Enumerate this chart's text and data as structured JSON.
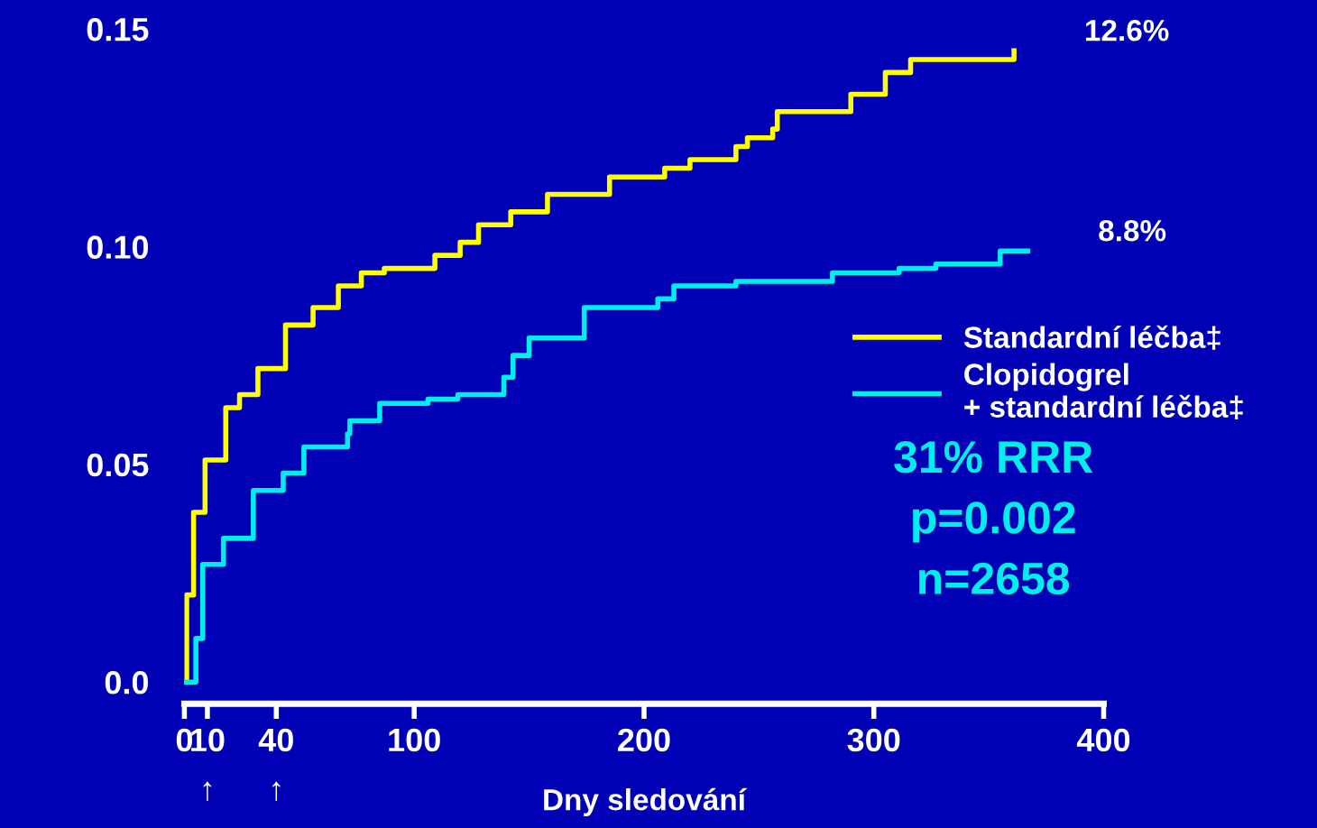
{
  "chart_data": {
    "type": "step",
    "xlabel": "Dny sledování",
    "xlim": [
      0,
      400
    ],
    "xticks": [
      0,
      10,
      40,
      100,
      200,
      300,
      400
    ],
    "ylim": [
      -0.005,
      0.15
    ],
    "yticks": [
      {
        "value": 0,
        "label": "0.0"
      },
      0.05,
      {
        "value": 0.1,
        "label": "0.10"
      },
      0.15
    ],
    "legend": "right",
    "grid": false,
    "series": [
      {
        "name": "Standardní léčba‡",
        "color": "#ffff00",
        "x": [
          0,
          1,
          4,
          9,
          18,
          24,
          32,
          44,
          56,
          67,
          77,
          87,
          109,
          120,
          128,
          142,
          158,
          185,
          209,
          220,
          240,
          245,
          256,
          258,
          282,
          290,
          305,
          316,
          355,
          361
        ],
        "values": [
          0,
          0.02,
          0.039,
          0.051,
          0.063,
          0.066,
          0.072,
          0.082,
          0.086,
          0.091,
          0.094,
          0.095,
          0.098,
          0.101,
          0.105,
          0.108,
          0.112,
          0.116,
          0.118,
          0.12,
          0.123,
          0.125,
          0.127,
          0.131,
          0.131,
          0.135,
          0.14,
          0.143,
          0.143,
          0.145
        ]
      },
      {
        "name": "Clopidogrel\n+ standardní léčba‡",
        "color": "#00eeee",
        "x": [
          0,
          1,
          5,
          8,
          17,
          30,
          43,
          52,
          71,
          72,
          85,
          106,
          119,
          139,
          143,
          150,
          169,
          174,
          190,
          206,
          213,
          240,
          282,
          311,
          327,
          355,
          367
        ],
        "values": [
          0,
          0,
          0.01,
          0.027,
          0.033,
          0.044,
          0.048,
          0.054,
          0.057,
          0.06,
          0.064,
          0.065,
          0.066,
          0.07,
          0.075,
          0.079,
          0.079,
          0.086,
          0.086,
          0.088,
          0.091,
          0.092,
          0.094,
          0.095,
          0.096,
          0.099,
          0.099
        ]
      }
    ],
    "annotations": [
      {
        "text": "12.6%",
        "x": 361,
        "y": 0.145
      },
      {
        "text": "8.8%",
        "x": 367,
        "y": 0.099
      },
      "31% RRR",
      "p=0.002",
      "n=2658",
      "↑",
      "↑"
    ]
  }
}
